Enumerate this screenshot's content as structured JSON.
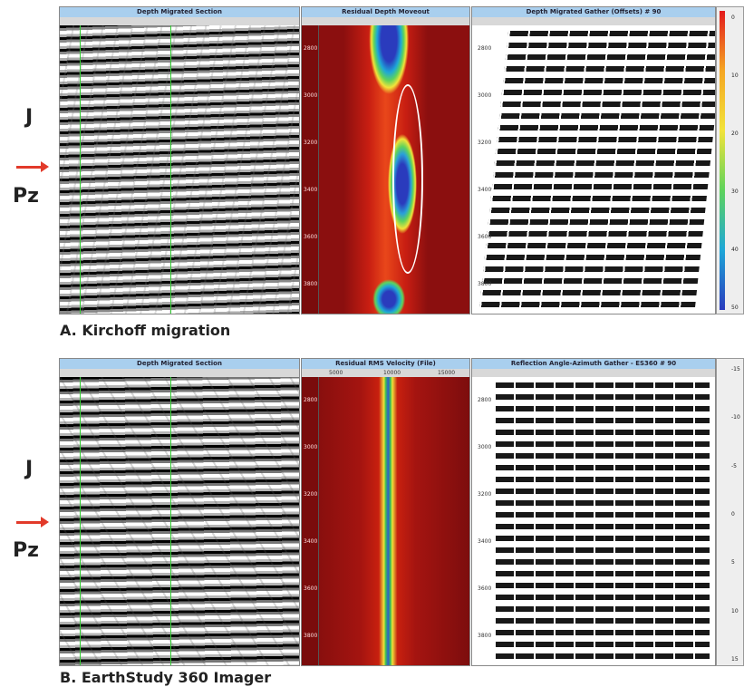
{
  "rows": [
    {
      "caption": "A. Kirchoff migration",
      "horizon_upper": "J",
      "horizon_lower": "Pz",
      "titles": [
        "Depth Migrated Section",
        "Residual Depth Moveout",
        "Depth Migrated Gather (Offsets) # 90"
      ],
      "depth_labels": [
        "2800",
        "3000",
        "3200",
        "3400",
        "3600",
        "3800"
      ],
      "colorbar_labels": [
        "0",
        "10",
        "20",
        "30",
        "40",
        "50"
      ]
    },
    {
      "caption": "B. EarthStudy 360 Imager",
      "horizon_upper": "J",
      "horizon_lower": "Pz",
      "titles": [
        "Depth Migrated Section",
        "Residual RMS Velocity (File)",
        "Reflection Angle-Azimuth Gather - ES360 # 90"
      ],
      "depth_labels": [
        "2800",
        "3000",
        "3200",
        "3400",
        "3600",
        "3800"
      ],
      "ruler_labels": [
        "5000",
        "10000",
        "15000"
      ],
      "colorbar_labels": [
        "-15",
        "-10",
        "-5",
        "0",
        "5",
        "10",
        "15"
      ]
    }
  ]
}
